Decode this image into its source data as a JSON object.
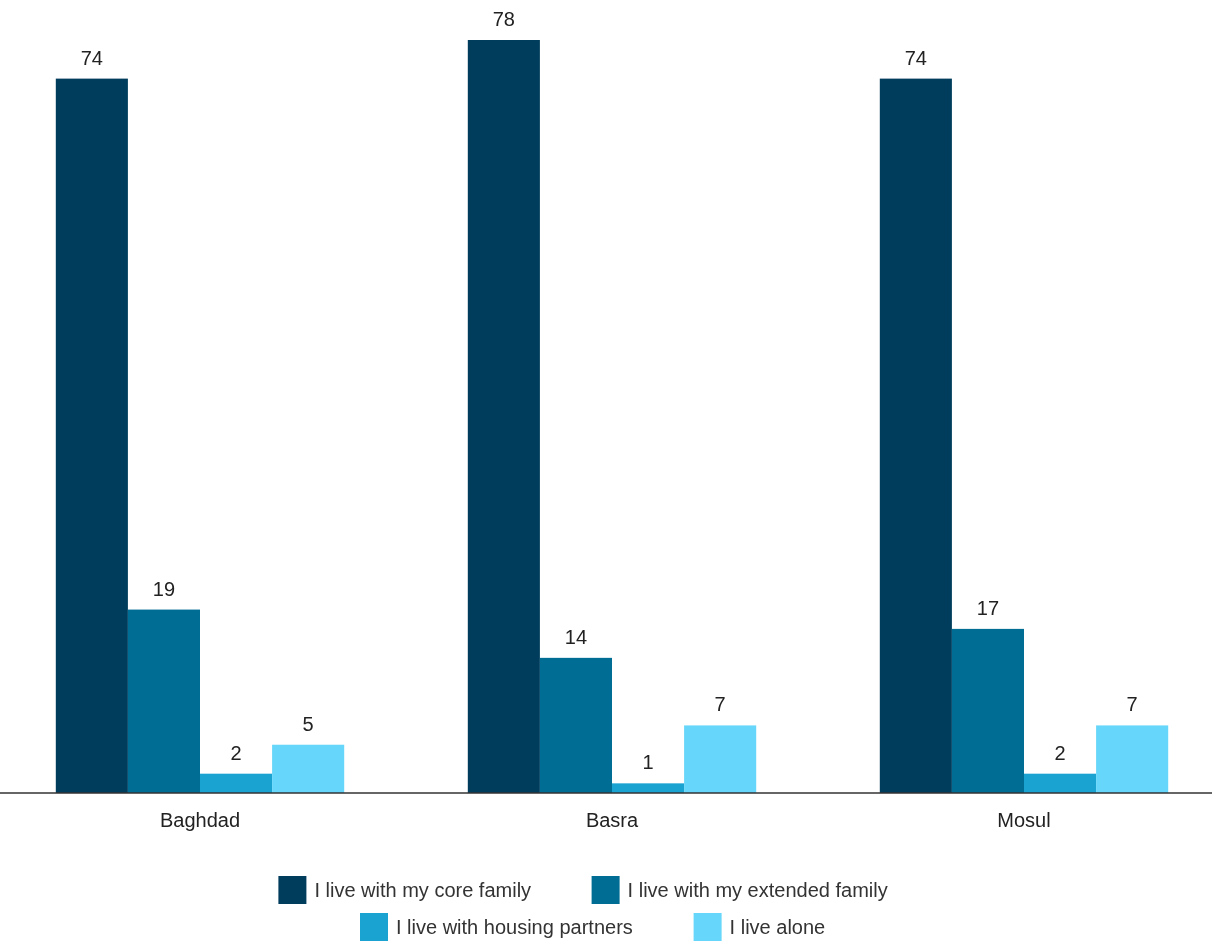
{
  "chart_data": {
    "type": "bar",
    "categories": [
      "Baghdad",
      "Basra",
      "Mosul"
    ],
    "series": [
      {
        "name": "I live with my core family",
        "color": "#003d5c",
        "values": [
          74,
          78,
          74
        ]
      },
      {
        "name": "I live with my extended family",
        "color": "#006d94",
        "values": [
          19,
          14,
          17
        ]
      },
      {
        "name": "I live with housing partners",
        "color": "#1aa3d1",
        "values": [
          2,
          1,
          2
        ]
      },
      {
        "name": "I live alone",
        "color": "#66d6fa",
        "values": [
          5,
          7,
          7
        ]
      }
    ],
    "data_labels": true,
    "legend": "bottom"
  }
}
